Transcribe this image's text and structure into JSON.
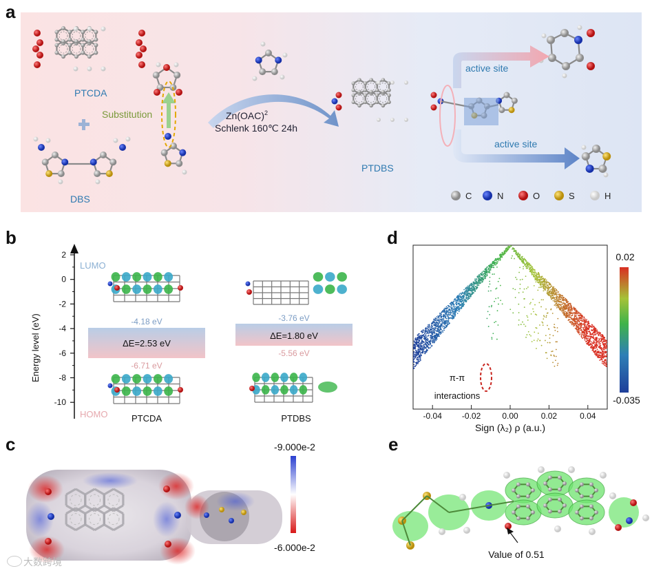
{
  "panels": {
    "a": {
      "label": "a",
      "ptcda": "PTCDA",
      "dbs": "DBS",
      "substitution": "Substitution",
      "condition_1": "Zn(OAC)",
      "condition_1_sup": "2",
      "condition_2": "Schlenk 160℃  24h",
      "ptdbs": "PTDBS",
      "active_site_1": "active site",
      "active_site_2": "active site",
      "legend": [
        "C",
        "N",
        "O",
        "S",
        "H"
      ]
    },
    "b": {
      "label": "b",
      "ylabel": "Energy level (eV)",
      "yticks": [
        "2",
        "0",
        "-2",
        "-4",
        "-6",
        "-8",
        "-10"
      ],
      "lumo": "LUMO",
      "homo": "HOMO",
      "ptcda_name": "PTCDA",
      "ptdbs_name": "PTDBS",
      "ptcda_lumo": "-4.18 eV",
      "ptcda_homo": "-6.71 eV",
      "ptcda_gap": "ΔE=2.53 eV",
      "ptdbs_lumo": "-3.76 eV",
      "ptdbs_homo": "-5.56 eV",
      "ptdbs_gap": "ΔE=1.80 eV"
    },
    "c": {
      "label": "c",
      "scale_max": "-9.000e-2",
      "scale_min": "-6.000e-2"
    },
    "d": {
      "label": "d",
      "xlabel": "Sign (λ₂) ρ (a.u.)",
      "xticks": [
        "-0.04",
        "-0.02",
        "0.00",
        "0.02",
        "0.04"
      ],
      "cbar_max": "0.02",
      "cbar_min": "-0.035",
      "annotation_1": "π-π",
      "annotation_2": "interactions"
    },
    "e": {
      "label": "e",
      "annotation": "Value of 0.51"
    }
  },
  "watermark": "大数跨境",
  "colors": {
    "carbon": "#9e9e9e",
    "nitrogen": "#1f3fc4",
    "oxygen": "#d42020",
    "sulfur": "#d8b021",
    "hydrogen": "#ffffff",
    "lumo_band": "#b8cde6",
    "homo_band": "#f2b8bf",
    "orbital_green": "#3bb54a",
    "orbital_cyan": "#3aa9c9"
  }
}
